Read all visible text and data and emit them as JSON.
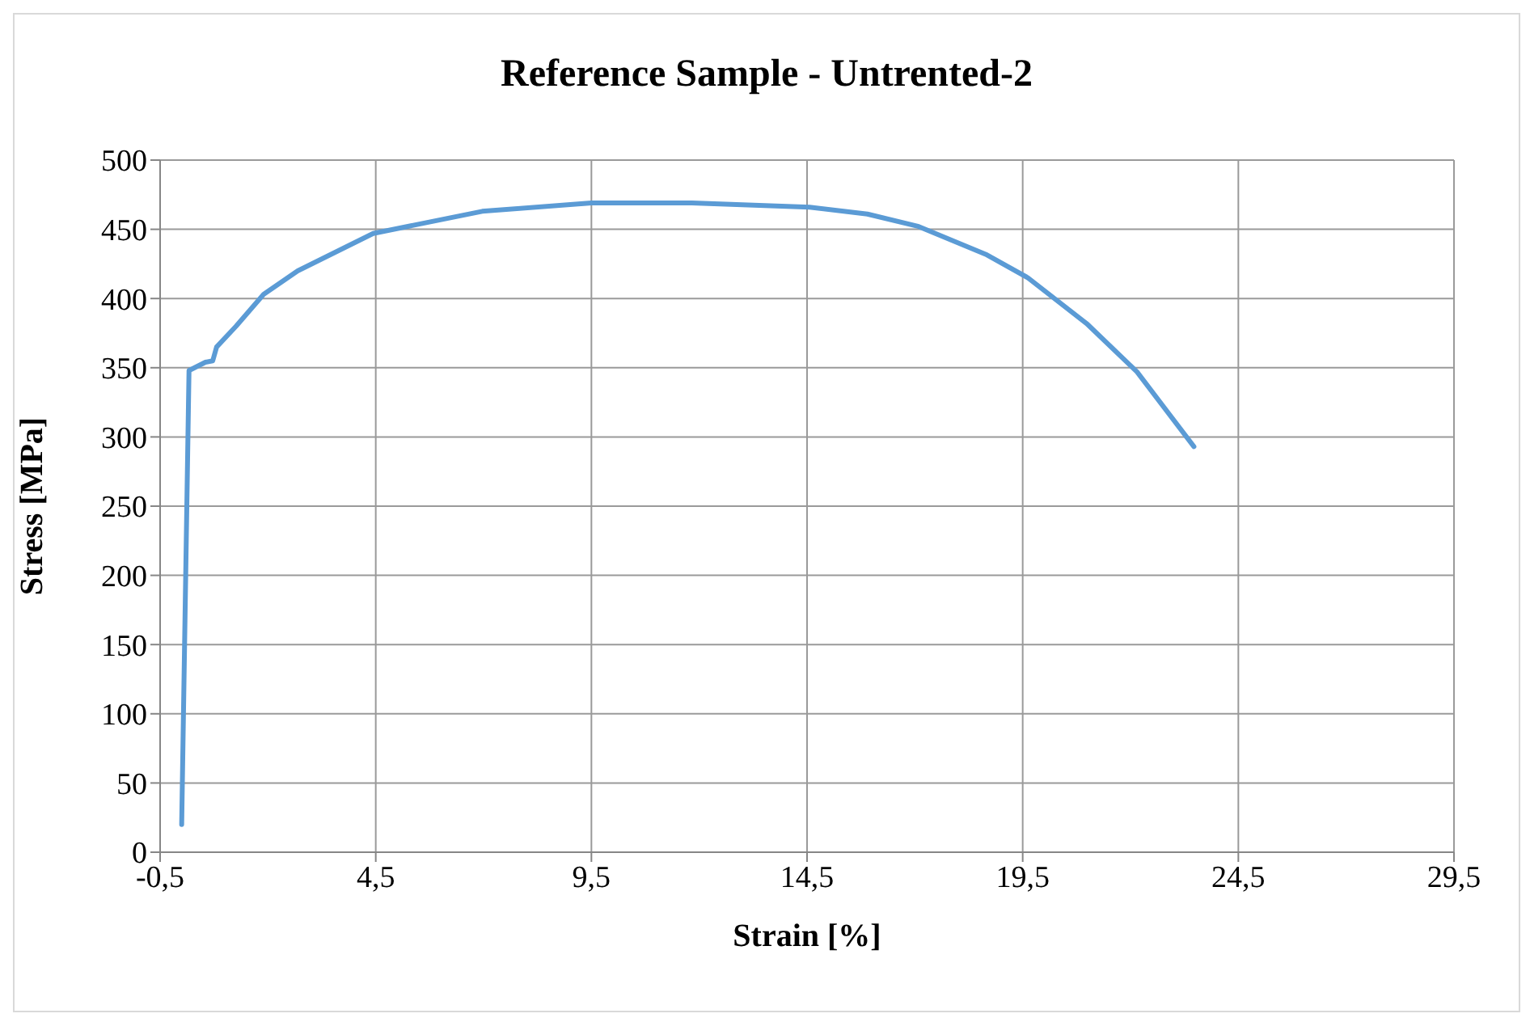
{
  "chart_data": {
    "type": "line",
    "title": "Reference Sample - Untrented-2",
    "xlabel": "Strain [%]",
    "ylabel": "Stress  [MPa]",
    "x": [
      0.0,
      0.17,
      0.55,
      0.72,
      0.81,
      1.26,
      1.9,
      2.69,
      4.44,
      6.97,
      9.5,
      11.83,
      14.56,
      15.9,
      17.09,
      18.64,
      19.62,
      20.98,
      22.15,
      23.47
    ],
    "series": [
      {
        "color": "#5b9bd5",
        "values": [
          20,
          348,
          354,
          355,
          365,
          380,
          403,
          420,
          447,
          463,
          469,
          469,
          466,
          461,
          452,
          432,
          415,
          382,
          347,
          293
        ]
      }
    ],
    "xlim": [
      -0.5,
      29.5
    ],
    "xticks": [
      {
        "value": -0.5,
        "label": "-0,5"
      },
      {
        "value": 4.5,
        "label": "4,5"
      },
      {
        "value": 9.5,
        "label": "9,5"
      },
      {
        "value": 14.5,
        "label": "14,5"
      },
      {
        "value": 19.5,
        "label": "19,5"
      },
      {
        "value": 24.5,
        "label": "24,5"
      },
      {
        "value": 29.5,
        "label": "29,5"
      }
    ],
    "ylim": [
      0,
      500
    ],
    "yticks": [
      0,
      50,
      100,
      150,
      200,
      250,
      300,
      350,
      400,
      450,
      500
    ],
    "grid": true,
    "marker": "none",
    "line_style": "solid"
  }
}
